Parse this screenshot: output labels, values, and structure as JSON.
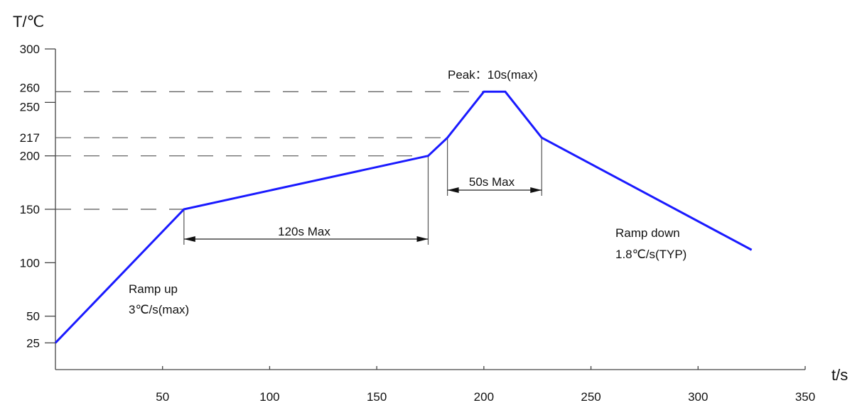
{
  "chart_data": {
    "type": "line",
    "xlabel": "t/s",
    "ylabel": "T/℃",
    "xlim": [
      0,
      350
    ],
    "ylim": [
      0,
      300
    ],
    "x_ticks": [
      50,
      100,
      150,
      200,
      250,
      300,
      350
    ],
    "y_ticks": [
      25,
      50,
      100,
      150,
      200,
      217,
      250,
      260,
      300
    ],
    "grid": false,
    "line_color": "#1a1aff",
    "series": [
      {
        "x": [
          0,
          60,
          174,
          183,
          200,
          210,
          227,
          325
        ],
        "y": [
          25,
          150,
          200,
          217,
          260,
          260,
          217,
          112
        ]
      }
    ],
    "reference_lines": [
      {
        "y": 260,
        "x_end": 200
      },
      {
        "y": 217,
        "x_end": 183
      },
      {
        "y": 200,
        "x_end": 174
      },
      {
        "y": 150,
        "x_end": 60
      }
    ],
    "dimensions": [
      {
        "label": "120s Max",
        "x_start": 60,
        "x_end": 174
      },
      {
        "label": "50s Max",
        "x_start": 183,
        "x_end": 227
      }
    ],
    "annotations": [
      {
        "label": "Peak：10s(max)"
      },
      {
        "label": "Ramp up"
      },
      {
        "label": "3℃/s(max)"
      },
      {
        "label": "Ramp down"
      },
      {
        "label": "1.8℃/s(TYP)"
      }
    ]
  }
}
